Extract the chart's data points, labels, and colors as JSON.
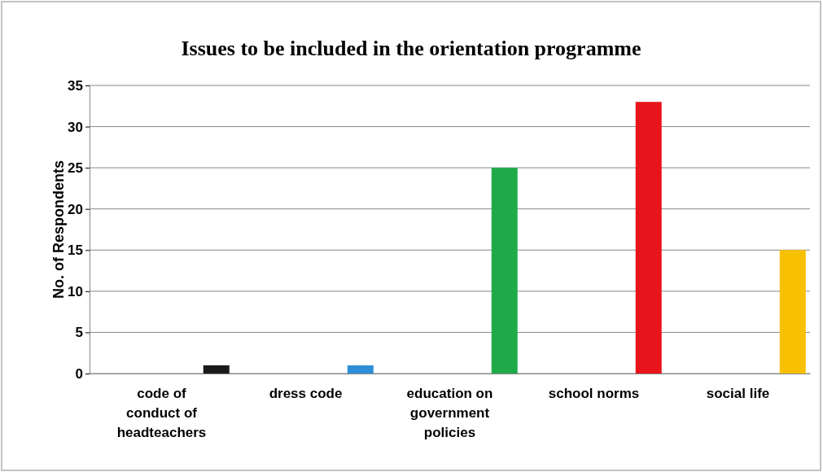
{
  "chart_data": {
    "type": "bar",
    "title": "Issues to be included in the orientation programme",
    "ylabel": "No. of Respondents",
    "categories": [
      "code of conduct of headteachers",
      "dress code",
      "education on government policies",
      "school norms",
      "social life"
    ],
    "values": [
      1,
      1,
      25,
      33,
      15
    ],
    "colors": [
      "#1a1a1a",
      "#2e8fd8",
      "#1faa4a",
      "#e8141c",
      "#f7c000"
    ],
    "ylim": [
      0,
      35
    ],
    "yticks": [
      0,
      5,
      10,
      15,
      20,
      25,
      30,
      35
    ],
    "grid": "y"
  }
}
